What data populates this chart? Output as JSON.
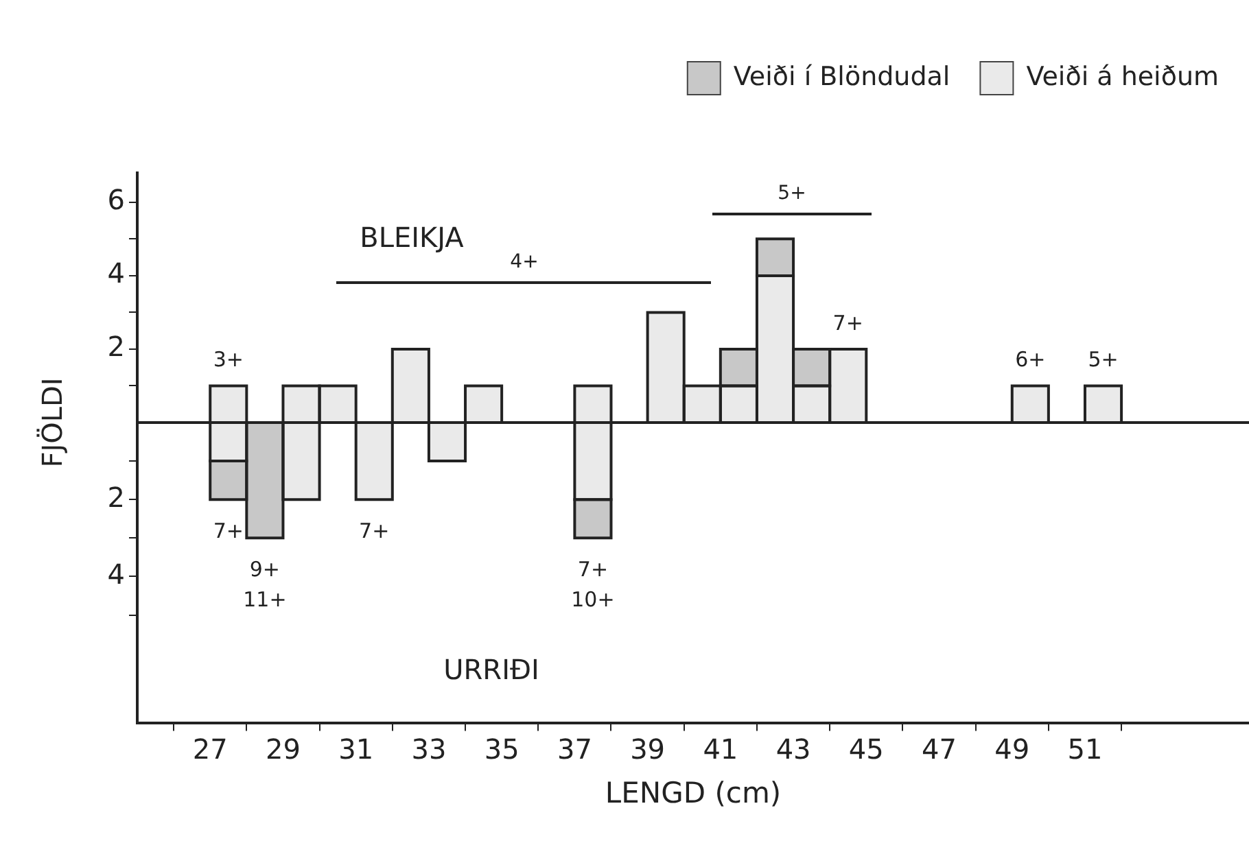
{
  "chart_data": [
    {
      "type": "bar",
      "stacked": true,
      "ylabel": "FJÖLDI",
      "legend": "top right",
      "tick_labels": "y",
      "x": [
        27.5,
        28.5,
        29.5,
        30.5,
        31.5,
        32.5,
        33.5,
        34.5,
        35.5,
        36.5,
        37.5,
        38.5,
        39.5,
        40.5,
        41.5,
        42.5,
        43.5,
        44.5,
        45.5,
        46.5,
        47.5,
        48.5,
        49.5,
        50.5,
        51.5
      ],
      "xlim": [
        25,
        55.5
      ],
      "xticks": [
        27,
        29,
        31,
        33,
        35,
        37,
        39,
        41,
        43,
        45,
        47,
        49,
        51
      ],
      "ylim": [
        0,
        6.8
      ],
      "yticks": [
        {
          "value": 1,
          "label": null
        },
        2,
        {
          "value": 3,
          "label": null
        },
        4,
        {
          "value": 5,
          "label": null
        },
        6
      ],
      "series": [
        {
          "name": "Veiði á heiðum",
          "color": "#eaeaea",
          "values": [
            1,
            null,
            1,
            1,
            null,
            2,
            null,
            1,
            null,
            null,
            1,
            null,
            3,
            1,
            1,
            4,
            1,
            2,
            null,
            null,
            null,
            null,
            1,
            null,
            1
          ]
        },
        {
          "name": "Veiði í Blöndudal",
          "color": "#c8c8c8",
          "values": [
            null,
            null,
            null,
            null,
            null,
            null,
            null,
            null,
            null,
            null,
            null,
            null,
            null,
            null,
            1,
            1,
            1,
            null,
            null,
            null,
            null,
            null,
            null,
            null,
            null
          ]
        }
      ],
      "annotations": [
        "BLEIKJA",
        "4+",
        "5+",
        {
          "text": "3+",
          "x": 27.5,
          "y": 1
        },
        {
          "text": "7+",
          "x": 44.5,
          "y": 2
        },
        {
          "text": "6+",
          "x": 49.5,
          "y": 1
        },
        {
          "text": "5+",
          "x": 51.5,
          "y": 1
        }
      ]
    },
    {
      "type": "bar",
      "stacked": true,
      "xlabel": "LENGD (cm)",
      "x": [
        27.5,
        28.5,
        29.5,
        30.5,
        31.5,
        32.5,
        33.5,
        34.5,
        35.5,
        36.5,
        37.5
      ],
      "xlim": [
        25,
        55.5
      ],
      "xticks": [
        27,
        29,
        31,
        33,
        35,
        37,
        39,
        41,
        43,
        45,
        47,
        49,
        51
      ],
      "ylim": [
        7.8,
        0
      ],
      "yticks": [
        {
          "value": 1,
          "label": null
        },
        2,
        {
          "value": 3,
          "label": null
        },
        4,
        {
          "value": 5,
          "label": null
        }
      ],
      "series": [
        {
          "color": "#eaeaea",
          "values": [
            1,
            null,
            2,
            null,
            2,
            null,
            1,
            null,
            null,
            null,
            2
          ]
        },
        {
          "color": "#c8c8c8",
          "values": [
            1,
            3,
            null,
            null,
            null,
            null,
            null,
            null,
            null,
            null,
            1
          ]
        }
      ],
      "annotations": [
        "URRIÐI",
        {
          "text": "7+",
          "x": 27.5,
          "y": 2
        },
        {
          "text": "9+",
          "x": 28.5,
          "y": 3
        },
        {
          "text": "11+",
          "x": 28.5,
          "y": 3
        },
        {
          "text": "7+",
          "x": 31.5,
          "y": 2
        },
        {
          "text": "7+",
          "x": 37.5,
          "y": 3
        },
        {
          "text": "10+",
          "x": 37.5,
          "y": 3
        }
      ]
    }
  ]
}
